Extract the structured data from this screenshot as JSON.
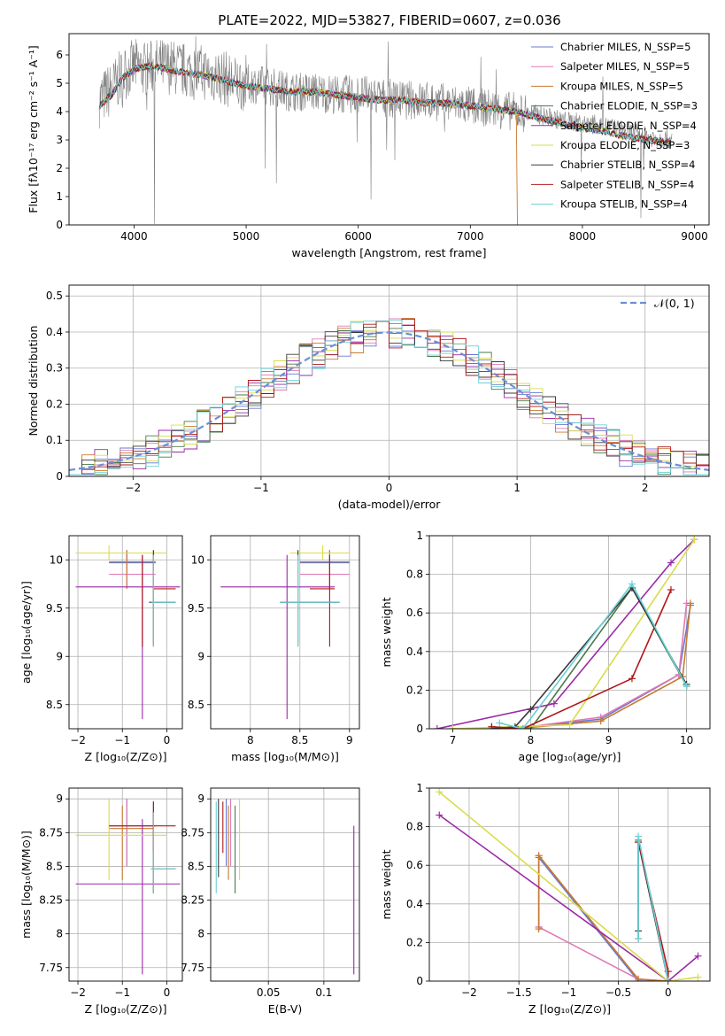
{
  "figure_title": "PLATE=2022, MJD=53827, FIBERID=0607, z=0.036",
  "series_colors": [
    "#6a78d0",
    "#e07ab5",
    "#c87a30",
    "#4a7a4a",
    "#9a2aa8",
    "#d8dc4a",
    "#3a3a3a",
    "#b01818",
    "#6ad0d8"
  ],
  "chart_data": [
    {
      "id": "spectrum",
      "type": "line",
      "xlabel": "wavelength [Angstrom, rest frame]",
      "ylabel": "Flux [fλ10⁻¹⁷ erg cm⁻² s⁻¹ A⁻¹]",
      "xlim": [
        3420,
        9130
      ],
      "ylim": [
        0,
        6.75
      ],
      "xticks": [
        4000,
        5000,
        6000,
        7000,
        8000,
        9000
      ],
      "yticks": [
        0,
        1,
        2,
        3,
        4,
        5,
        6
      ],
      "legend_position": "top-right",
      "legend": [
        "Chabrier MILES, N_SSP=5",
        "Salpeter MILES, N_SSP=5",
        "Kroupa MILES, N_SSP=5",
        "Chabrier ELODIE, N_SSP=3",
        "Salpeter ELODIE, N_SSP=4",
        "Kroupa ELODIE, N_SSP=3",
        "Chabrier STELIB, N_SSP=4",
        "Salpeter STELIB, N_SSP=4",
        "Kroupa STELIB, N_SSP=4"
      ],
      "data_series": {
        "name": "data",
        "color": "#808080",
        "x": [
          3690,
          3800,
          3900,
          4000,
          4100,
          4200,
          4300,
          4400,
          4500,
          4600,
          4700,
          4800,
          4900,
          5000,
          5200,
          5400,
          5600,
          5800,
          6000,
          6200,
          6400,
          6600,
          6800,
          7000,
          7200,
          7400,
          7600,
          7800,
          8000,
          8200,
          8400,
          8600,
          8800
        ],
        "y": [
          4.4,
          4.8,
          5.3,
          5.6,
          5.5,
          5.6,
          5.6,
          5.5,
          5.4,
          5.4,
          5.3,
          5.2,
          5.0,
          5.0,
          4.9,
          4.7,
          4.7,
          4.6,
          4.6,
          4.5,
          4.4,
          4.4,
          4.3,
          4.2,
          4.1,
          4.0,
          3.9,
          3.7,
          3.6,
          3.5,
          3.3,
          3.1,
          3.0
        ]
      },
      "model_series": {
        "x": [
          3690,
          3800,
          3900,
          4000,
          4100,
          4200,
          4300,
          4400,
          4600,
          4800,
          5000,
          5200,
          5400,
          5600,
          5800,
          6000,
          6200,
          6400,
          6600,
          6800,
          7000,
          7200,
          7400,
          7600,
          7800,
          8000,
          8200,
          8400,
          8600,
          8800
        ],
        "y": [
          4.2,
          4.6,
          5.2,
          5.5,
          5.6,
          5.6,
          5.5,
          5.4,
          5.3,
          5.1,
          4.9,
          4.8,
          4.7,
          4.7,
          4.6,
          4.5,
          4.4,
          4.4,
          4.3,
          4.3,
          4.2,
          4.1,
          4.0,
          3.8,
          3.6,
          3.4,
          3.3,
          3.1,
          3.0,
          2.9
        ]
      }
    },
    {
      "id": "residuals",
      "type": "histogram",
      "xlabel": "(data-model)/error",
      "ylabel": "Normed distribution",
      "xlim": [
        -2.5,
        2.5
      ],
      "ylim": [
        0,
        0.53
      ],
      "xticks": [
        -2,
        -1,
        0,
        1,
        2
      ],
      "yticks": [
        0.0,
        0.1,
        0.2,
        0.3,
        0.4,
        0.5
      ],
      "legend": [
        "𝒩(0, 1)"
      ],
      "legend_position": "top-right",
      "bin_width": 0.1,
      "reference_curve": "normal(0,1)"
    },
    {
      "id": "age_vs_Z",
      "type": "errorbar",
      "xlabel": "Z [log₁₀(Z/Z⊙)]",
      "ylabel": "age  [log₁₀(age/yr)]",
      "xlim": [
        -2.2,
        0.35
      ],
      "ylim": [
        8.25,
        10.25
      ],
      "xticks": [
        -2,
        -1,
        0
      ],
      "yticks": [
        8.5,
        9.0,
        9.5,
        10.0
      ],
      "points": [
        {
          "s": 0,
          "x": -0.9,
          "y": 9.97,
          "xe": [
            -1.3,
            -0.25
          ],
          "ye": [
            9.9,
            10.1
          ]
        },
        {
          "s": 1,
          "x": -0.9,
          "y": 9.85,
          "xe": [
            -1.3,
            -0.25
          ],
          "ye": [
            9.7,
            10.1
          ]
        },
        {
          "s": 2,
          "x": -0.9,
          "y": 9.98,
          "xe": [
            -1.3,
            -0.25
          ],
          "ye": [
            9.7,
            10.1
          ]
        },
        {
          "s": 3,
          "x": -0.3,
          "y": 9.56,
          "xe": [
            -0.35,
            0.2
          ],
          "ye": [
            9.1,
            10.1
          ]
        },
        {
          "s": 4,
          "x": -0.55,
          "y": 9.72,
          "xe": [
            -2.05,
            0.3
          ],
          "ye": [
            8.35,
            10.05
          ]
        },
        {
          "s": 5,
          "x": -1.3,
          "y": 10.07,
          "xe": [
            -2.05,
            0.0
          ],
          "ye": [
            10.0,
            10.15
          ]
        },
        {
          "s": 6,
          "x": -0.3,
          "y": 9.56,
          "xe": [
            -0.4,
            0.2
          ],
          "ye": [
            9.12,
            10.1
          ]
        },
        {
          "s": 7,
          "x": -0.55,
          "y": 9.7,
          "xe": [
            -0.3,
            0.2
          ],
          "ye": [
            9.1,
            10.05
          ]
        },
        {
          "s": 8,
          "x": -0.3,
          "y": 9.56,
          "xe": [
            -0.35,
            0.2
          ],
          "ye": [
            9.1,
            10.05
          ]
        }
      ]
    },
    {
      "id": "age_vs_mass",
      "type": "errorbar",
      "xlabel": "mass [log₁₀(M/M⊙)]",
      "ylabel": "",
      "xlim": [
        7.6,
        9.1
      ],
      "ylim": [
        8.25,
        10.25
      ],
      "xticks": [
        8.0,
        8.5,
        9.0
      ],
      "yticks": [
        8.5,
        9.0,
        9.5,
        10.0
      ],
      "points": [
        {
          "s": 0,
          "x": 8.8,
          "y": 9.97,
          "xe": [
            8.5,
            9.0
          ],
          "ye": [
            9.9,
            10.1
          ]
        },
        {
          "s": 1,
          "x": 8.8,
          "y": 9.85,
          "xe": [
            8.5,
            9.0
          ],
          "ye": [
            9.7,
            10.1
          ]
        },
        {
          "s": 2,
          "x": 8.8,
          "y": 9.98,
          "xe": [
            8.5,
            9.0
          ],
          "ye": [
            9.7,
            10.1
          ]
        },
        {
          "s": 3,
          "x": 8.48,
          "y": 9.56,
          "xe": [
            8.3,
            8.9
          ],
          "ye": [
            9.1,
            10.1
          ]
        },
        {
          "s": 4,
          "x": 8.37,
          "y": 9.72,
          "xe": [
            7.7,
            8.85
          ],
          "ye": [
            8.35,
            10.05
          ]
        },
        {
          "s": 5,
          "x": 8.73,
          "y": 10.07,
          "xe": [
            8.4,
            9.0
          ],
          "ye": [
            10.0,
            10.15
          ]
        },
        {
          "s": 6,
          "x": 8.48,
          "y": 9.56,
          "xe": [
            8.3,
            8.9
          ],
          "ye": [
            9.12,
            10.1
          ]
        },
        {
          "s": 7,
          "x": 8.8,
          "y": 9.7,
          "xe": [
            8.6,
            8.85
          ],
          "ye": [
            9.1,
            10.05
          ]
        },
        {
          "s": 8,
          "x": 8.48,
          "y": 9.56,
          "xe": [
            8.3,
            8.9
          ],
          "ye": [
            9.1,
            10.05
          ]
        }
      ]
    },
    {
      "id": "mass_weight_vs_age",
      "type": "line",
      "xlabel": "age  [log₁₀(age/yr)]",
      "ylabel": "mass weight",
      "xlim": [
        6.7,
        10.3
      ],
      "ylim": [
        0,
        1.0
      ],
      "xticks": [
        7,
        8,
        9,
        10
      ],
      "yticks": [
        0.0,
        0.2,
        0.4,
        0.6,
        0.8,
        1.0
      ],
      "series": [
        {
          "s": 0,
          "x": [
            7.5,
            7.8,
            8.9,
            9.9,
            10.05
          ],
          "y": [
            0.01,
            0.0,
            0.05,
            0.28,
            0.64
          ]
        },
        {
          "s": 1,
          "x": [
            7.5,
            7.8,
            8.9,
            9.9,
            10.0
          ],
          "y": [
            0.01,
            0.0,
            0.06,
            0.28,
            0.65
          ]
        },
        {
          "s": 2,
          "x": [
            7.5,
            7.8,
            8.9,
            9.95,
            10.05
          ],
          "y": [
            0.01,
            0.0,
            0.04,
            0.27,
            0.65
          ]
        },
        {
          "s": 3,
          "x": [
            7.0,
            8.0,
            9.3,
            10.0
          ],
          "y": [
            0.0,
            0.0,
            0.73,
            0.22
          ]
        },
        {
          "s": 4,
          "x": [
            6.8,
            8.3,
            9.8,
            10.1
          ],
          "y": [
            0.0,
            0.13,
            0.86,
            0.98
          ]
        },
        {
          "s": 5,
          "x": [
            7.0,
            8.5,
            10.1
          ],
          "y": [
            0.0,
            0.02,
            0.98
          ]
        },
        {
          "s": 6,
          "x": [
            7.5,
            7.8,
            8.0,
            9.3,
            10.0
          ],
          "y": [
            0.0,
            0.01,
            0.1,
            0.73,
            0.23
          ]
        },
        {
          "s": 7,
          "x": [
            7.5,
            7.9,
            9.3,
            9.8
          ],
          "y": [
            0.01,
            0.0,
            0.26,
            0.72
          ]
        },
        {
          "s": 8,
          "x": [
            7.6,
            7.9,
            9.3,
            10.0
          ],
          "y": [
            0.03,
            0.0,
            0.75,
            0.22
          ]
        }
      ]
    },
    {
      "id": "mass_vs_Z",
      "type": "errorbar",
      "xlabel": "Z [log₁₀(Z/Z⊙)]",
      "ylabel": "mass [log₁₀(M/M⊙)]",
      "xlim": [
        -2.2,
        0.35
      ],
      "ylim": [
        7.65,
        9.08
      ],
      "xticks": [
        -2,
        -1,
        0
      ],
      "yticks": [
        7.75,
        8.0,
        8.25,
        8.5,
        8.75,
        9.0
      ],
      "points": [
        {
          "s": 0,
          "x": -0.9,
          "y": 8.8,
          "xe": [
            -1.3,
            -0.25
          ],
          "ye": [
            8.5,
            9.0
          ]
        },
        {
          "s": 1,
          "x": -0.9,
          "y": 8.8,
          "xe": [
            -1.3,
            -0.25
          ],
          "ye": [
            8.5,
            9.0
          ]
        },
        {
          "s": 2,
          "x": -1.0,
          "y": 8.78,
          "xe": [
            -1.3,
            -0.3
          ],
          "ye": [
            8.4,
            8.95
          ]
        },
        {
          "s": 3,
          "x": -0.3,
          "y": 8.48,
          "xe": [
            -0.35,
            0.2
          ],
          "ye": [
            8.3,
            8.9
          ]
        },
        {
          "s": 4,
          "x": -0.55,
          "y": 8.37,
          "xe": [
            -2.05,
            0.3
          ],
          "ye": [
            7.7,
            8.85
          ]
        },
        {
          "s": 5,
          "x": -1.3,
          "y": 8.73,
          "xe": [
            -2.05,
            0.0
          ],
          "ye": [
            8.4,
            9.0
          ]
        },
        {
          "s": 6,
          "x": -0.3,
          "y": 8.48,
          "xe": [
            -0.35,
            0.2
          ],
          "ye": [
            8.3,
            8.98
          ]
        },
        {
          "s": 7,
          "x": -0.3,
          "y": 8.8,
          "xe": [
            -1.3,
            0.2
          ],
          "ye": [
            8.6,
            8.98
          ]
        },
        {
          "s": 8,
          "x": -0.3,
          "y": 8.48,
          "xe": [
            -0.35,
            0.2
          ],
          "ye": [
            8.3,
            8.9
          ]
        }
      ]
    },
    {
      "id": "mass_vs_ebv",
      "type": "errorbar",
      "xlabel": "E(B-V)",
      "ylabel": "",
      "xlim": [
        -0.002,
        0.132
      ],
      "ylim": [
        7.65,
        9.08
      ],
      "xticks": [
        0.05,
        0.1
      ],
      "yticks": [
        7.75,
        8.0,
        8.25,
        8.5,
        8.75,
        9.0
      ],
      "points": [
        {
          "s": 0,
          "x": 0.012,
          "y": 8.8,
          "ye": [
            8.5,
            9.0
          ]
        },
        {
          "s": 1,
          "x": 0.016,
          "y": 8.8,
          "ye": [
            8.5,
            9.0
          ]
        },
        {
          "s": 2,
          "x": 0.014,
          "y": 8.78,
          "ye": [
            8.4,
            8.95
          ]
        },
        {
          "s": 3,
          "x": 0.02,
          "y": 8.48,
          "ye": [
            8.3,
            8.95
          ]
        },
        {
          "s": 4,
          "x": 0.127,
          "y": 8.37,
          "ye": [
            7.7,
            8.8
          ]
        },
        {
          "s": 5,
          "x": 0.024,
          "y": 8.73,
          "ye": [
            8.4,
            9.0
          ]
        },
        {
          "s": 6,
          "x": 0.005,
          "y": 8.48,
          "ye": [
            8.42,
            9.0
          ]
        },
        {
          "s": 7,
          "x": 0.009,
          "y": 8.8,
          "ye": [
            8.6,
            8.98
          ]
        },
        {
          "s": 8,
          "x": 0.003,
          "y": 8.48,
          "ye": [
            8.3,
            8.98
          ]
        }
      ]
    },
    {
      "id": "mass_weight_vs_Z",
      "type": "line",
      "xlabel": "Z [log₁₀(Z/Z⊙)]",
      "ylabel": "mass weight",
      "xlim": [
        -2.4,
        0.42
      ],
      "ylim": [
        0,
        1.0
      ],
      "xticks": [
        -2.0,
        -1.5,
        -1.0,
        -0.5,
        0.0
      ],
      "yticks": [
        0.0,
        0.2,
        0.4,
        0.6,
        0.8,
        1.0
      ],
      "series": [
        {
          "s": 0,
          "x": [
            -1.3,
            -1.3,
            -0.3,
            0.0
          ],
          "y": [
            0.28,
            0.64,
            0.0,
            0.0
          ]
        },
        {
          "s": 1,
          "x": [
            -1.3,
            -1.3,
            -0.3,
            0.0
          ],
          "y": [
            0.65,
            0.28,
            0.01,
            0.0
          ]
        },
        {
          "s": 2,
          "x": [
            -1.3,
            -1.3,
            -0.3,
            0.0
          ],
          "y": [
            0.27,
            0.65,
            0.01,
            0.0
          ]
        },
        {
          "s": 3,
          "x": [
            -0.3,
            -0.3,
            0.0
          ],
          "y": [
            0.22,
            0.73,
            0.0
          ]
        },
        {
          "s": 4,
          "x": [
            -2.3,
            0.0,
            0.3
          ],
          "y": [
            0.86,
            0.0,
            0.13
          ]
        },
        {
          "s": 5,
          "x": [
            -2.3,
            0.0,
            0.3
          ],
          "y": [
            0.98,
            0.0,
            0.02
          ]
        },
        {
          "s": 6,
          "x": [
            -0.3,
            -0.3,
            0.0
          ],
          "y": [
            0.26,
            0.72,
            0.0
          ]
        },
        {
          "s": 7,
          "x": [
            -0.3,
            0.0,
            0.0
          ],
          "y": [
            0.72,
            0.05,
            0.0
          ]
        },
        {
          "s": 8,
          "x": [
            -0.3,
            -0.3,
            0.0
          ],
          "y": [
            0.22,
            0.75,
            0.0
          ]
        }
      ]
    }
  ]
}
